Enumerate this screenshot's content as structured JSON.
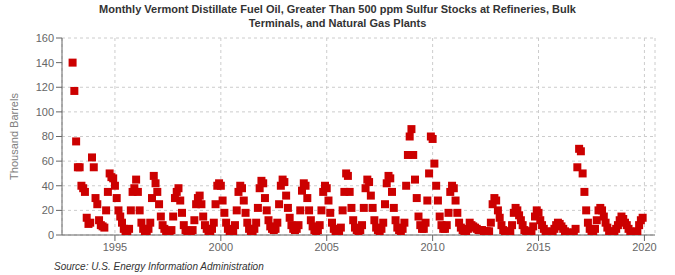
{
  "chart_data": {
    "type": "scatter",
    "title": "Monthly Vermont Distillate Fuel Oil, Greater Than 500 ppm Sulfur Stocks at Refineries, Bulk\nTerminals, and Natural Gas Plants",
    "ylabel": "Thousand Barrels",
    "annotations": [
      "Source: U.S. Energy Information Administration"
    ],
    "color": "#cc0000",
    "marker": "square",
    "grid": true,
    "xlim": [
      1992.5,
      2020.5
    ],
    "ylim": [
      0,
      160
    ],
    "xticks": [
      1995,
      2000,
      2005,
      2010,
      2015,
      2020
    ],
    "yticks": [
      0,
      20,
      40,
      60,
      80,
      100,
      120,
      140,
      160
    ],
    "x": [
      1993.0,
      1993.083,
      1993.167,
      1993.25,
      1993.333,
      1993.417,
      1993.5,
      1993.583,
      1993.667,
      1993.75,
      1993.833,
      1993.917,
      1994.0,
      1994.083,
      1994.167,
      1994.25,
      1994.333,
      1994.417,
      1994.5,
      1994.583,
      1994.667,
      1994.75,
      1994.833,
      1994.917,
      1995.0,
      1995.083,
      1995.167,
      1995.25,
      1995.333,
      1995.417,
      1995.5,
      1995.583,
      1995.667,
      1995.75,
      1995.833,
      1995.917,
      1996.0,
      1996.083,
      1996.167,
      1996.25,
      1996.333,
      1996.417,
      1996.5,
      1996.583,
      1996.667,
      1996.75,
      1996.833,
      1996.917,
      1997.0,
      1997.083,
      1997.167,
      1997.25,
      1997.333,
      1997.417,
      1997.5,
      1997.583,
      1997.667,
      1997.75,
      1997.833,
      1997.917,
      1998.0,
      1998.083,
      1998.167,
      1998.25,
      1998.333,
      1998.417,
      1998.5,
      1998.583,
      1998.667,
      1998.75,
      1998.833,
      1998.917,
      1999.0,
      1999.083,
      1999.167,
      1999.25,
      1999.333,
      1999.417,
      1999.5,
      1999.583,
      1999.667,
      1999.75,
      1999.833,
      1999.917,
      2000.0,
      2000.083,
      2000.167,
      2000.25,
      2000.333,
      2000.417,
      2000.5,
      2000.583,
      2000.667,
      2000.75,
      2000.833,
      2000.917,
      2001.0,
      2001.083,
      2001.167,
      2001.25,
      2001.333,
      2001.417,
      2001.5,
      2001.583,
      2001.667,
      2001.75,
      2001.833,
      2001.917,
      2002.0,
      2002.083,
      2002.167,
      2002.25,
      2002.333,
      2002.417,
      2002.5,
      2002.583,
      2002.667,
      2002.75,
      2002.833,
      2002.917,
      2003.0,
      2003.083,
      2003.167,
      2003.25,
      2003.333,
      2003.417,
      2003.5,
      2003.583,
      2003.667,
      2003.75,
      2003.833,
      2003.917,
      2004.0,
      2004.083,
      2004.167,
      2004.25,
      2004.333,
      2004.417,
      2004.5,
      2004.583,
      2004.667,
      2004.75,
      2004.833,
      2004.917,
      2005.0,
      2005.083,
      2005.167,
      2005.25,
      2005.333,
      2005.417,
      2005.5,
      2005.583,
      2005.667,
      2005.75,
      2005.833,
      2005.917,
      2006.0,
      2006.083,
      2006.167,
      2006.25,
      2006.333,
      2006.417,
      2006.5,
      2006.583,
      2006.667,
      2006.75,
      2006.833,
      2006.917,
      2007.0,
      2007.083,
      2007.167,
      2007.25,
      2007.333,
      2007.417,
      2007.5,
      2007.583,
      2007.667,
      2007.75,
      2007.833,
      2007.917,
      2008.0,
      2008.083,
      2008.167,
      2008.25,
      2008.333,
      2008.417,
      2008.5,
      2008.583,
      2008.667,
      2008.75,
      2008.833,
      2008.917,
      2009.0,
      2009.083,
      2009.167,
      2009.25,
      2009.333,
      2009.417,
      2009.5,
      2009.583,
      2009.667,
      2009.75,
      2009.833,
      2009.917,
      2010.0,
      2010.083,
      2010.167,
      2010.25,
      2010.333,
      2010.417,
      2010.5,
      2010.583,
      2010.667,
      2010.75,
      2010.833,
      2010.917,
      2011.0,
      2011.083,
      2011.167,
      2011.25,
      2011.333,
      2011.417,
      2011.5,
      2011.583,
      2011.667,
      2011.75,
      2011.833,
      2011.917,
      2012.0,
      2012.083,
      2012.167,
      2012.25,
      2012.333,
      2012.417,
      2012.5,
      2012.583,
      2012.667,
      2012.75,
      2012.833,
      2012.917,
      2013.0,
      2013.083,
      2013.167,
      2013.25,
      2013.333,
      2013.417,
      2013.5,
      2013.583,
      2013.667,
      2013.75,
      2013.833,
      2013.917,
      2014.0,
      2014.083,
      2014.167,
      2014.25,
      2014.333,
      2014.417,
      2014.5,
      2014.583,
      2014.667,
      2014.75,
      2014.833,
      2014.917,
      2015.0,
      2015.083,
      2015.167,
      2015.25,
      2015.333,
      2015.417,
      2015.5,
      2015.583,
      2015.667,
      2015.75,
      2015.833,
      2015.917,
      2016.0,
      2016.083,
      2016.167,
      2016.25,
      2016.333,
      2016.417,
      2016.5,
      2016.583,
      2016.667,
      2016.75,
      2016.833,
      2016.917,
      2017.0,
      2017.083,
      2017.167,
      2017.25,
      2017.333,
      2017.417,
      2017.5,
      2017.583,
      2017.667,
      2017.75,
      2017.833,
      2017.917,
      2018.0,
      2018.083,
      2018.167,
      2018.25,
      2018.333,
      2018.417,
      2018.5,
      2018.583,
      2018.667,
      2018.75,
      2018.833,
      2018.917,
      2019.0,
      2019.083,
      2019.167,
      2019.25,
      2019.333,
      2019.417,
      2019.5,
      2019.583,
      2019.667,
      2019.75,
      2019.833,
      2019.917
    ],
    "values": [
      140,
      117,
      76,
      55,
      55,
      40,
      38,
      35,
      14,
      9,
      10,
      63,
      55,
      30,
      25,
      12,
      8,
      7,
      6,
      20,
      35,
      50,
      47,
      46,
      40,
      30,
      20,
      15,
      10,
      5,
      3,
      3,
      5,
      20,
      35,
      38,
      45,
      35,
      20,
      10,
      5,
      3,
      2,
      5,
      10,
      30,
      48,
      42,
      35,
      25,
      15,
      8,
      5,
      3,
      2,
      2,
      4,
      15,
      30,
      35,
      38,
      28,
      18,
      8,
      4,
      3,
      2,
      2,
      4,
      12,
      25,
      30,
      32,
      25,
      15,
      8,
      5,
      3,
      3,
      5,
      10,
      25,
      40,
      42,
      40,
      28,
      18,
      10,
      5,
      3,
      2,
      3,
      8,
      20,
      35,
      40,
      38,
      28,
      18,
      10,
      5,
      3,
      3,
      5,
      10,
      22,
      38,
      44,
      42,
      30,
      20,
      12,
      7,
      5,
      4,
      5,
      10,
      25,
      40,
      45,
      43,
      32,
      22,
      14,
      8,
      5,
      4,
      5,
      8,
      20,
      36,
      42,
      40,
      30,
      20,
      12,
      7,
      4,
      3,
      4,
      8,
      20,
      35,
      40,
      38,
      28,
      18,
      10,
      5,
      3,
      2,
      3,
      6,
      20,
      35,
      50,
      48,
      35,
      22,
      12,
      6,
      4,
      3,
      4,
      8,
      22,
      38,
      45,
      43,
      32,
      22,
      12,
      6,
      4,
      3,
      5,
      10,
      25,
      42,
      48,
      46,
      35,
      22,
      12,
      6,
      4,
      3,
      5,
      10,
      40,
      65,
      80,
      86,
      65,
      45,
      30,
      15,
      8,
      5,
      5,
      10,
      28,
      50,
      80,
      78,
      58,
      40,
      28,
      15,
      8,
      5,
      5,
      8,
      18,
      35,
      40,
      38,
      28,
      18,
      10,
      6,
      4,
      3,
      3,
      5,
      10,
      8,
      7,
      6,
      5,
      4,
      4,
      4,
      3,
      3,
      3,
      3,
      10,
      25,
      30,
      28,
      20,
      14,
      8,
      4,
      3,
      2,
      2,
      3,
      8,
      18,
      22,
      20,
      16,
      12,
      8,
      4,
      3,
      2,
      2,
      3,
      7,
      15,
      20,
      18,
      12,
      8,
      5,
      3,
      2,
      1,
      2,
      3,
      5,
      8,
      10,
      9,
      7,
      5,
      3,
      2,
      2,
      1,
      1,
      2,
      5,
      55,
      70,
      68,
      50,
      35,
      20,
      10,
      5,
      3,
      3,
      5,
      12,
      20,
      22,
      20,
      15,
      10,
      6,
      3,
      2,
      2,
      3,
      5,
      8,
      12,
      15,
      13,
      10,
      8,
      5,
      3,
      2,
      1,
      2,
      3,
      8,
      12,
      14
    ]
  }
}
